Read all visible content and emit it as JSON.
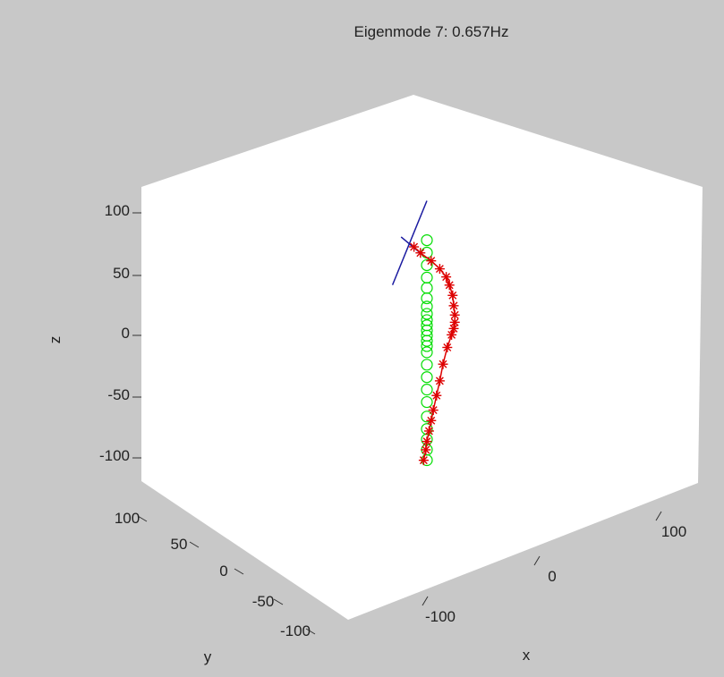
{
  "figure": {
    "title": "Eigenmode 7:  0.657Hz",
    "background_color": "#c8c8c8",
    "axes_color": "#ffffff"
  },
  "chart_data": {
    "type": "scatter",
    "title": "Eigenmode 7:  0.657Hz",
    "xlabel": "x",
    "ylabel": "y",
    "zlabel": "z",
    "xticks": [
      "-100",
      "0",
      "100"
    ],
    "yticks": [
      "100",
      "50",
      "0",
      "-50",
      "-100"
    ],
    "zticks": [
      "100",
      "50",
      "0",
      "-50",
      "-100"
    ],
    "xlim": [
      -125,
      135
    ],
    "ylim": [
      -125,
      125
    ],
    "zlim": [
      -125,
      125
    ],
    "grid": false,
    "view": "3d",
    "series": [
      {
        "marker": "o",
        "color": "#00dd00",
        "linestyle": "none",
        "points": [
          [
            0,
            0,
            90
          ],
          [
            0,
            0,
            78
          ],
          [
            0,
            0,
            66
          ],
          [
            0,
            0,
            54
          ],
          [
            0,
            0,
            44
          ],
          [
            0,
            0,
            34
          ],
          [
            0,
            0,
            26
          ],
          [
            0,
            0,
            19
          ],
          [
            0,
            0,
            13
          ],
          [
            0,
            0,
            8
          ],
          [
            0,
            0,
            3
          ],
          [
            0,
            0,
            -2
          ],
          [
            0,
            0,
            -7
          ],
          [
            0,
            0,
            -12
          ],
          [
            0,
            0,
            -18
          ],
          [
            0,
            0,
            -30
          ],
          [
            0,
            0,
            -42
          ],
          [
            0,
            0,
            -54
          ],
          [
            0,
            0,
            -66
          ],
          [
            0,
            0,
            -80
          ],
          [
            0,
            0,
            -92
          ],
          [
            0,
            0,
            -102
          ],
          [
            0,
            0,
            -112
          ],
          [
            0,
            0,
            -122
          ]
        ]
      },
      {
        "marker": "*",
        "color": "#dd0000",
        "linestyle": "-",
        "points": [
          [
            -12,
            0,
            84
          ],
          [
            -6,
            0,
            78
          ],
          [
            4,
            0,
            70
          ],
          [
            12,
            0,
            62
          ],
          [
            18,
            0,
            54
          ],
          [
            21,
            0,
            46
          ],
          [
            24,
            0,
            36
          ],
          [
            25,
            0,
            26
          ],
          [
            26,
            0,
            17
          ],
          [
            26,
            0,
            10
          ],
          [
            25,
            0,
            4
          ],
          [
            23,
            0,
            -2
          ],
          [
            19,
            0,
            -14
          ],
          [
            15,
            0,
            -30
          ],
          [
            12,
            0,
            -46
          ],
          [
            9,
            0,
            -60
          ],
          [
            6,
            0,
            -74
          ],
          [
            4,
            0,
            -84
          ],
          [
            2,
            0,
            -94
          ],
          [
            0,
            0,
            -104
          ],
          [
            -1,
            0,
            -112
          ],
          [
            -3,
            0,
            -122
          ]
        ]
      },
      {
        "marker": "none",
        "color": "#1a1aa0",
        "linestyle": "-",
        "points": [
          [
            -32,
            0,
            48
          ],
          [
            0,
            0,
            128
          ]
        ]
      },
      {
        "marker": "none",
        "color": "#1a1aa0",
        "linestyle": "-",
        "points": [
          [
            -24,
            0,
            94
          ],
          [
            -4,
            0,
            76
          ]
        ]
      }
    ]
  }
}
